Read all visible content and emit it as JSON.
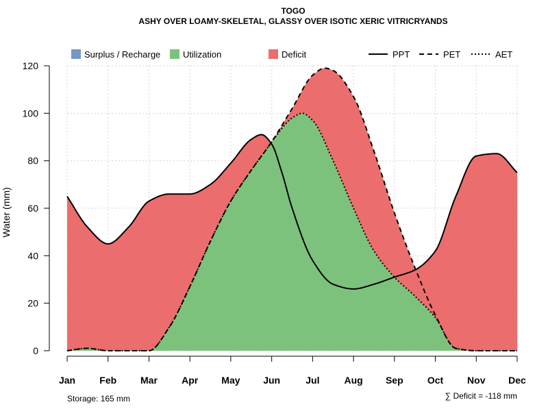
{
  "chart_data": {
    "type": "area",
    "title": "TOGO",
    "subtitle": "ASHY OVER LOAMY-SKELETAL, GLASSY OVER ISOTIC XERIC VITRICRYANDS",
    "ylabel": "Water (mm)",
    "xlabel": "",
    "ylim": [
      0,
      120
    ],
    "yticks": [
      0,
      20,
      40,
      60,
      80,
      100,
      120
    ],
    "categories": [
      "Jan",
      "Feb",
      "Mar",
      "Apr",
      "May",
      "Jun",
      "Jul",
      "Aug",
      "Sep",
      "Oct",
      "Nov",
      "Dec"
    ],
    "grid": true,
    "legend": {
      "position": "top",
      "areas": [
        {
          "label": "Surplus / Recharge",
          "color": "#7399c6"
        },
        {
          "label": "Utilization",
          "color": "#7dc27c"
        },
        {
          "label": "Deficit",
          "color": "#ec6d6d"
        }
      ],
      "lines": [
        {
          "label": "PPT",
          "style": "solid"
        },
        {
          "label": "PET",
          "style": "dashed"
        },
        {
          "label": "AET",
          "style": "dotted"
        }
      ]
    },
    "series": [
      {
        "name": "PPT",
        "x": [
          0,
          0.5,
          1,
          1.5,
          2,
          2.5,
          3,
          3.5,
          4,
          4.5,
          4.75,
          5,
          5.25,
          5.5,
          6,
          6.5,
          7,
          7.5,
          8,
          8.5,
          9,
          9.5,
          10,
          10.5,
          11
        ],
        "values": [
          65,
          52,
          45,
          52,
          63,
          66,
          66,
          70,
          79,
          89,
          91,
          87,
          75,
          60,
          38,
          28,
          26,
          28,
          31,
          34,
          42,
          65,
          82,
          83,
          75
        ]
      },
      {
        "name": "PET",
        "x": [
          0,
          0.5,
          1,
          1.5,
          2,
          2.5,
          3,
          3.5,
          4,
          4.5,
          5,
          5.5,
          6,
          6.3,
          6.5,
          7,
          7.5,
          8,
          8.5,
          9,
          9.5,
          10,
          10.5,
          11
        ],
        "values": [
          0,
          1,
          0,
          0,
          0,
          10,
          27,
          46,
          63,
          76,
          88,
          102,
          116,
          119,
          118,
          107,
          84,
          58,
          35,
          15,
          1,
          0,
          0,
          0
        ]
      },
      {
        "name": "AET",
        "x": [
          0,
          0.5,
          1,
          1.5,
          2,
          2.5,
          3,
          3.5,
          4,
          4.5,
          5,
          5.5,
          5.75,
          6,
          6.5,
          7,
          7.5,
          8,
          8.5,
          9,
          9.5,
          10,
          10.5,
          11
        ],
        "values": [
          0,
          1,
          0,
          0,
          0,
          10,
          27,
          46,
          63,
          76,
          88,
          98,
          100,
          97,
          80,
          60,
          42,
          31,
          23,
          14,
          1,
          0,
          0,
          0
        ]
      }
    ],
    "annotations": {
      "storage": "Storage: 165 mm",
      "deficit": "∑ Deficit = -118 mm"
    }
  }
}
